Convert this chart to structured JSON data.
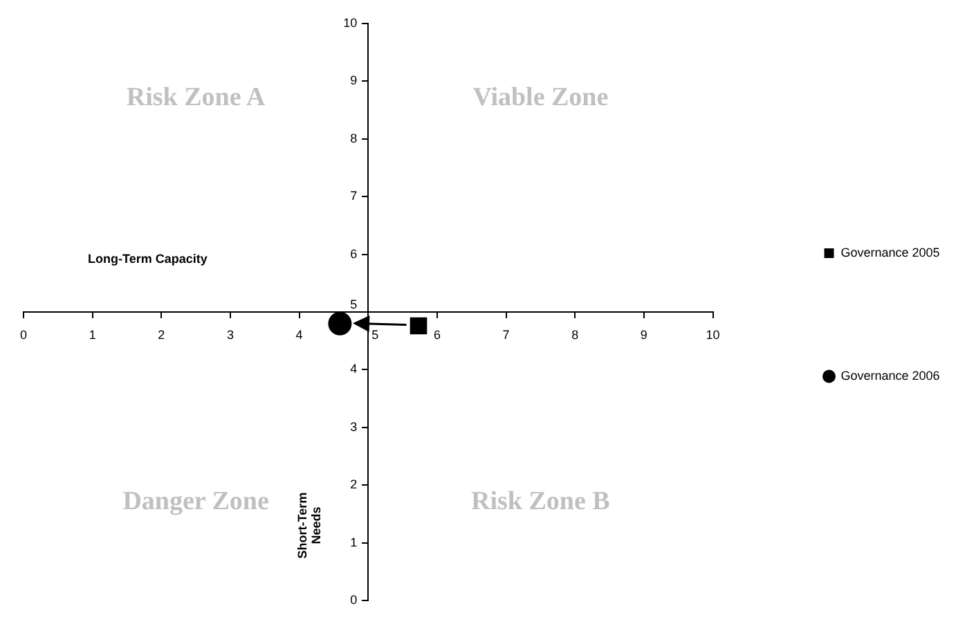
{
  "chart_data": {
    "type": "scatter",
    "xlabel": "Long-Term Capacity",
    "ylabel": "Short-Term Needs",
    "xlim": [
      0,
      10
    ],
    "ylim": [
      0,
      10
    ],
    "xticks": [
      0,
      1,
      2,
      3,
      4,
      5,
      6,
      7,
      8,
      9,
      10
    ],
    "yticks": [
      0,
      1,
      2,
      3,
      4,
      5,
      6,
      7,
      8,
      9,
      10
    ],
    "series": [
      {
        "name": "Governance 2005",
        "color": "#000000",
        "marker": "square",
        "x": [
          5.73
        ],
        "values": [
          4.76
        ]
      },
      {
        "name": "Governance 2006",
        "color": "#000000",
        "marker": "circle",
        "x": [
          4.59
        ],
        "values": [
          4.8
        ]
      }
    ],
    "annotations": [
      "Risk Zone A",
      "Viable Zone",
      "Danger Zone",
      "Risk Zone B"
    ],
    "grid": false,
    "legend": "right"
  }
}
